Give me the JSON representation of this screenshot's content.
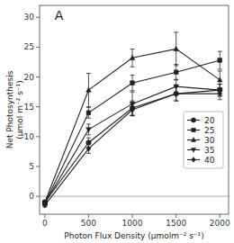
{
  "chart_data": {
    "type": "line",
    "xlabel": "Photon Flux Density (μmolm⁻² s⁻¹)",
    "ylabel": "Net Photosynthesis\n(μmol m⁻² s⁻¹)",
    "annotation": "A",
    "x": [
      0,
      500,
      1000,
      1500,
      2000
    ],
    "series": [
      {
        "name": "20",
        "color": "#222222",
        "marker": "circle",
        "values": [
          -1.0,
          9.0,
          14.8,
          17.2,
          17.8
        ],
        "errors": [
          0.3,
          0.8,
          1.2,
          1.2,
          1.0
        ]
      },
      {
        "name": "25",
        "color": "#222222",
        "marker": "square",
        "values": [
          -1.2,
          14.0,
          19.0,
          20.8,
          22.8
        ],
        "errors": [
          0.3,
          0.9,
          1.3,
          1.3,
          1.5
        ]
      },
      {
        "name": "30",
        "color": "#222222",
        "marker": "triangle-up",
        "values": [
          -1.0,
          17.8,
          23.2,
          24.7,
          19.5
        ],
        "errors": [
          0.3,
          2.8,
          1.5,
          2.8,
          1.5
        ]
      },
      {
        "name": "35",
        "color": "#222222",
        "marker": "triangle-down",
        "values": [
          -1.2,
          11.2,
          15.5,
          18.4,
          17.8
        ],
        "errors": [
          0.3,
          0.9,
          2.0,
          1.2,
          1.0
        ]
      },
      {
        "name": "40",
        "color": "#222222",
        "marker": "diamond",
        "values": [
          -1.5,
          8.0,
          14.5,
          17.2,
          17.2
        ],
        "errors": [
          0.3,
          0.8,
          1.0,
          1.2,
          1.0
        ]
      }
    ],
    "hline_y": 0,
    "xlim": [
      -60,
      2100
    ],
    "ylim": [
      -3.0,
      32
    ],
    "xticks": [
      0,
      500,
      1000,
      1500,
      2000
    ],
    "yticks": [
      0,
      5,
      10,
      15,
      20,
      25,
      30
    ],
    "grid": false,
    "legend": "right"
  }
}
